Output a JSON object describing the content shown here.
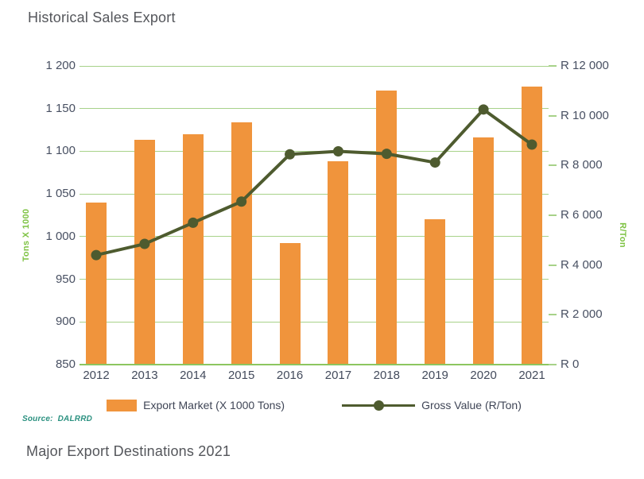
{
  "page": {
    "title": "Historical Sales Export",
    "section2_title": "Major Export Destinations 2021"
  },
  "source": {
    "label": "Source:",
    "value": "DALRRD"
  },
  "legend": {
    "bar_label": "Export Market (X 1000 Tons)",
    "line_label": "Gross Value (R/Ton)"
  },
  "chart_data": {
    "type": "bar",
    "subtype": "combo bar + line, dual axis",
    "title": "Historical Sales Export",
    "categories": [
      "2012",
      "2013",
      "2014",
      "2015",
      "2016",
      "2017",
      "2018",
      "2019",
      "2020",
      "2021"
    ],
    "series": [
      {
        "name": "Export Market (X 1000 Tons)",
        "type": "bar",
        "axis": "left",
        "values": [
          1040,
          1113,
          1120,
          1134,
          992,
          1088,
          1171,
          1020,
          1116,
          1176
        ]
      },
      {
        "name": "Gross Value (R/Ton)",
        "type": "line",
        "axis": "right",
        "values": [
          4400,
          4850,
          5700,
          6550,
          8450,
          8570,
          8470,
          8120,
          10250,
          8840
        ]
      }
    ],
    "left_axis": {
      "label": "Tons X 1000",
      "min": 850,
      "max": 1200,
      "tick_step": 50,
      "ticks": [
        {
          "value": 1200,
          "label": "1 200"
        },
        {
          "value": 1150,
          "label": "1 150"
        },
        {
          "value": 1100,
          "label": "1 100"
        },
        {
          "value": 1050,
          "label": "1 050"
        },
        {
          "value": 1000,
          "label": "1 000"
        },
        {
          "value": 950,
          "label": "950"
        },
        {
          "value": 900,
          "label": "900"
        },
        {
          "value": 850,
          "label": "850"
        }
      ]
    },
    "right_axis": {
      "label": "R/Ton",
      "min": 0,
      "max": 12000,
      "tick_step": 2000,
      "ticks": [
        {
          "value": 12000,
          "label": "R  12 000"
        },
        {
          "value": 10000,
          "label": "R  10 000"
        },
        {
          "value": 8000,
          "label": "R  8 000"
        },
        {
          "value": 6000,
          "label": "R  6 000"
        },
        {
          "value": 4000,
          "label": "R  4 000"
        },
        {
          "value": 2000,
          "label": "R  2 000"
        },
        {
          "value": 0,
          "label": "R  0"
        }
      ]
    },
    "grid": true,
    "legend_position": "bottom",
    "colors": {
      "bar": "#f0943c",
      "line": "#4e5b2f",
      "gridline": "#a7d289",
      "axis_text": "#485062",
      "axis_title_green": "#7dc242",
      "title_text": "#54565b",
      "source_text": "#2b9180"
    }
  }
}
